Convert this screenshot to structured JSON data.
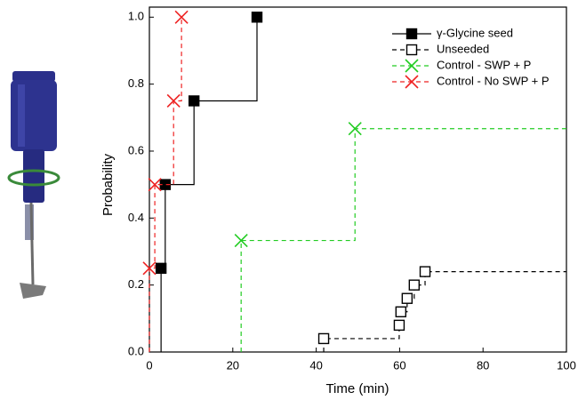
{
  "chart_data": {
    "type": "step",
    "xlabel": "Time (min)",
    "ylabel": "Probability",
    "xlim": [
      0,
      100
    ],
    "xticks": [
      0,
      20,
      40,
      60,
      80,
      100
    ],
    "ylim": [
      0,
      1.03
    ],
    "yticks": [
      {
        "value": 0,
        "label": "0.0"
      },
      0.2,
      0.4,
      0.6,
      0.8,
      {
        "value": 1,
        "label": "1.0"
      }
    ],
    "legend": "top-right",
    "series": [
      {
        "name": "γ-Glycine seed",
        "color": "#000000",
        "dash": false,
        "marker": "filled-square",
        "x": [
          2.8,
          3.8,
          10.7,
          25.8
        ],
        "values": [
          0.25,
          0.5,
          0.75,
          1.0
        ]
      },
      {
        "name": "Unseeded",
        "color": "#000000",
        "dash": true,
        "marker": "open-square",
        "x": [
          41.8,
          59.9,
          60.3,
          61.8,
          63.5,
          66.1
        ],
        "values": [
          0.04,
          0.08,
          0.12,
          0.16,
          0.2,
          0.24
        ]
      },
      {
        "name": "Control - SWP + P",
        "color": "#22cc22",
        "dash": true,
        "marker": "x",
        "x": [
          22.0,
          49.3
        ],
        "values": [
          0.333,
          0.667
        ]
      },
      {
        "name": "Control - No SWP + P",
        "color": "#ee2222",
        "dash": true,
        "marker": "x",
        "x": [
          0.0,
          1.3,
          5.8,
          7.7
        ],
        "values": [
          0.25,
          0.5,
          0.75,
          1.0
        ]
      }
    ]
  }
}
